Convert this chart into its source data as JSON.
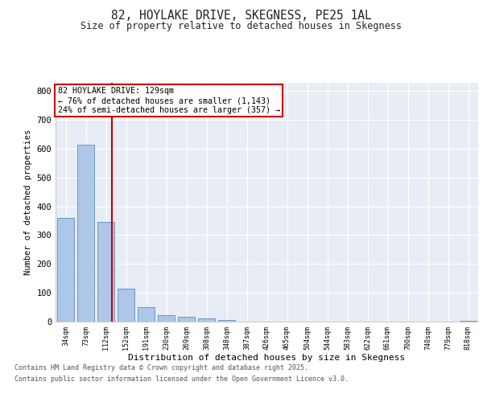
{
  "title1": "82, HOYLAKE DRIVE, SKEGNESS, PE25 1AL",
  "title2": "Size of property relative to detached houses in Skegness",
  "xlabel": "Distribution of detached houses by size in Skegness",
  "ylabel": "Number of detached properties",
  "categories": [
    "34sqm",
    "73sqm",
    "112sqm",
    "152sqm",
    "191sqm",
    "230sqm",
    "269sqm",
    "308sqm",
    "348sqm",
    "387sqm",
    "426sqm",
    "465sqm",
    "504sqm",
    "544sqm",
    "583sqm",
    "622sqm",
    "661sqm",
    "700sqm",
    "740sqm",
    "779sqm",
    "818sqm"
  ],
  "values": [
    360,
    615,
    345,
    115,
    50,
    22,
    18,
    12,
    5,
    0,
    0,
    0,
    0,
    0,
    0,
    0,
    0,
    0,
    0,
    0,
    3
  ],
  "bar_color": "#aec6e8",
  "bar_edge_color": "#5a8fc2",
  "vline_x_index": 2.28,
  "vline_color": "#cc0000",
  "annotation_text": "82 HOYLAKE DRIVE: 129sqm\n← 76% of detached houses are smaller (1,143)\n24% of semi-detached houses are larger (357) →",
  "annotation_box_color": "#ffffff",
  "annotation_box_edge_color": "#cc0000",
  "ylim": [
    0,
    830
  ],
  "yticks": [
    0,
    100,
    200,
    300,
    400,
    500,
    600,
    700,
    800
  ],
  "fig_bg_color": "#ffffff",
  "plot_bg_color": "#e8edf5",
  "footer1": "Contains HM Land Registry data © Crown copyright and database right 2025.",
  "footer2": "Contains public sector information licensed under the Open Government Licence v3.0."
}
